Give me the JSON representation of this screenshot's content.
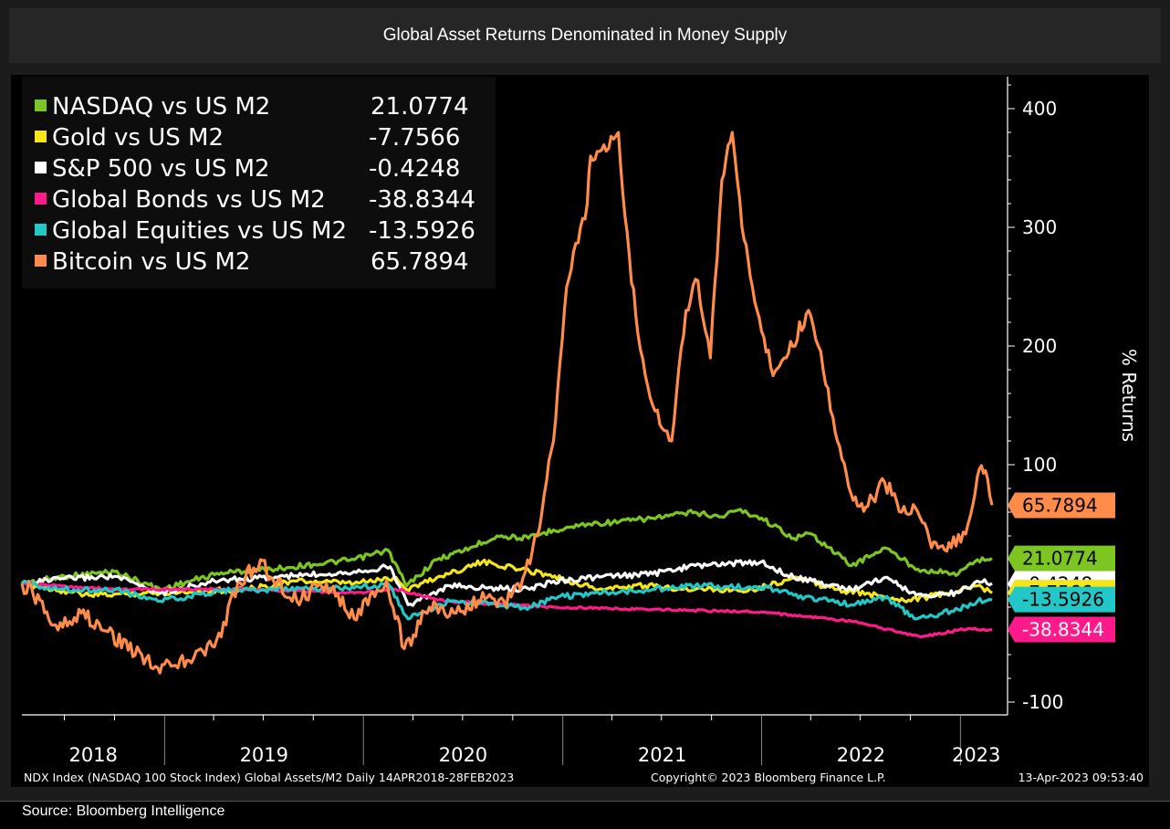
{
  "header": {
    "title": "Global Asset Returns Denominated in Money Supply"
  },
  "footer": {
    "index_info": "NDX Index (NASDAQ 100 Stock Index) Global Assets/M2  Daily 14APR2018-28FEB2023",
    "copyright": "Copyright© 2023 Bloomberg Finance L.P.",
    "timestamp": "13-Apr-2023 09:53:40",
    "source": "Source: Bloomberg Intelligence"
  },
  "chart_data": {
    "type": "line",
    "ylabel": "% Returns",
    "ylim": [
      -100,
      420
    ],
    "yticks": [
      -100,
      100,
      200,
      300,
      400
    ],
    "yticks_labels": [
      "-100",
      "100",
      "200",
      "300",
      "400"
    ],
    "x_range": [
      "2018-04-14",
      "2023-02-28"
    ],
    "x_year_labels": [
      "2018",
      "2019",
      "2020",
      "2021",
      "2022",
      "2023"
    ],
    "legend_position": "top-left",
    "grid": false,
    "series": [
      {
        "name": "NASDAQ vs US M2",
        "last_label": "21.0774",
        "color": "#7dc622",
        "points": [
          [
            "2018-04-14",
            0
          ],
          [
            "2018-07-01",
            6
          ],
          [
            "2018-10-01",
            10
          ],
          [
            "2018-12-24",
            -5
          ],
          [
            "2019-04-15",
            9
          ],
          [
            "2019-07-15",
            12
          ],
          [
            "2019-10-01",
            16
          ],
          [
            "2019-12-15",
            20
          ],
          [
            "2020-02-15",
            28
          ],
          [
            "2020-03-20",
            -2
          ],
          [
            "2020-05-15",
            20
          ],
          [
            "2020-07-15",
            30
          ],
          [
            "2020-09-02",
            40
          ],
          [
            "2020-10-30",
            38
          ],
          [
            "2020-12-15",
            45
          ],
          [
            "2021-02-15",
            50
          ],
          [
            "2021-04-15",
            52
          ],
          [
            "2021-06-15",
            55
          ],
          [
            "2021-09-01",
            60
          ],
          [
            "2021-10-15",
            56
          ],
          [
            "2021-11-19",
            62
          ],
          [
            "2022-01-01",
            55
          ],
          [
            "2022-03-01",
            38
          ],
          [
            "2022-04-01",
            42
          ],
          [
            "2022-06-15",
            15
          ],
          [
            "2022-08-15",
            30
          ],
          [
            "2022-10-15",
            12
          ],
          [
            "2022-12-28",
            8
          ],
          [
            "2023-02-01",
            20
          ],
          [
            "2023-02-28",
            21
          ]
        ]
      },
      {
        "name": "Gold vs US M2",
        "last_label": "-7.7566",
        "color": "#f5e619",
        "points": [
          [
            "2018-04-14",
            0
          ],
          [
            "2018-08-15",
            -10
          ],
          [
            "2018-12-15",
            -8
          ],
          [
            "2019-06-01",
            -5
          ],
          [
            "2019-09-01",
            2
          ],
          [
            "2019-12-15",
            0
          ],
          [
            "2020-03-01",
            5
          ],
          [
            "2020-03-20",
            -5
          ],
          [
            "2020-05-15",
            5
          ],
          [
            "2020-08-06",
            18
          ],
          [
            "2020-11-30",
            8
          ],
          [
            "2021-03-08",
            -5
          ],
          [
            "2021-06-01",
            -2
          ],
          [
            "2021-09-01",
            -5
          ],
          [
            "2021-12-15",
            -5
          ],
          [
            "2022-03-08",
            5
          ],
          [
            "2022-05-15",
            -5
          ],
          [
            "2022-09-28",
            -14
          ],
          [
            "2022-12-15",
            -8
          ],
          [
            "2023-02-01",
            -2
          ],
          [
            "2023-02-28",
            -8
          ]
        ]
      },
      {
        "name": "S&P 500 vs US M2",
        "last_label": "-0.4248",
        "color": "#ffffff",
        "points": [
          [
            "2018-04-14",
            0
          ],
          [
            "2018-07-01",
            4
          ],
          [
            "2018-10-01",
            6
          ],
          [
            "2018-12-24",
            -8
          ],
          [
            "2019-04-15",
            3
          ],
          [
            "2019-07-15",
            5
          ],
          [
            "2019-12-15",
            10
          ],
          [
            "2020-02-19",
            14
          ],
          [
            "2020-03-23",
            -18
          ],
          [
            "2020-06-08",
            -2
          ],
          [
            "2020-08-15",
            -4
          ],
          [
            "2020-11-01",
            -5
          ],
          [
            "2020-12-15",
            2
          ],
          [
            "2021-03-01",
            5
          ],
          [
            "2021-06-15",
            8
          ],
          [
            "2021-09-01",
            15
          ],
          [
            "2021-12-31",
            18
          ],
          [
            "2022-03-01",
            5
          ],
          [
            "2022-06-15",
            -5
          ],
          [
            "2022-08-15",
            5
          ],
          [
            "2022-10-12",
            -10
          ],
          [
            "2022-12-28",
            -8
          ],
          [
            "2023-02-01",
            2
          ],
          [
            "2023-02-28",
            0
          ]
        ]
      },
      {
        "name": "Global Bonds vs US M2",
        "last_label": "-38.8344",
        "color": "#ff1a8c",
        "points": [
          [
            "2018-04-14",
            0
          ],
          [
            "2018-10-01",
            -5
          ],
          [
            "2019-06-01",
            -5
          ],
          [
            "2019-12-15",
            -8
          ],
          [
            "2020-03-01",
            -5
          ],
          [
            "2020-06-01",
            -15
          ],
          [
            "2020-12-15",
            -20
          ],
          [
            "2021-06-15",
            -22
          ],
          [
            "2021-12-31",
            -24
          ],
          [
            "2022-06-15",
            -32
          ],
          [
            "2022-10-21",
            -45
          ],
          [
            "2023-01-15",
            -38
          ],
          [
            "2023-02-28",
            -39
          ]
        ]
      },
      {
        "name": "Global Equities vs US M2",
        "last_label": "-13.5926",
        "color": "#22c8c8",
        "points": [
          [
            "2018-04-14",
            0
          ],
          [
            "2018-07-01",
            -5
          ],
          [
            "2018-10-01",
            -5
          ],
          [
            "2018-12-24",
            -15
          ],
          [
            "2019-04-15",
            -6
          ],
          [
            "2019-12-15",
            -4
          ],
          [
            "2020-02-15",
            0
          ],
          [
            "2020-03-23",
            -30
          ],
          [
            "2020-06-08",
            -15
          ],
          [
            "2020-11-01",
            -20
          ],
          [
            "2020-12-15",
            -12
          ],
          [
            "2021-03-01",
            -8
          ],
          [
            "2021-06-15",
            -5
          ],
          [
            "2021-09-01",
            -2
          ],
          [
            "2021-12-31",
            -3
          ],
          [
            "2022-03-01",
            -10
          ],
          [
            "2022-06-15",
            -18
          ],
          [
            "2022-08-15",
            -12
          ],
          [
            "2022-10-12",
            -30
          ],
          [
            "2022-12-28",
            -22
          ],
          [
            "2023-02-01",
            -15
          ],
          [
            "2023-02-28",
            -14
          ]
        ]
      },
      {
        "name": "Bitcoin vs US M2",
        "last_label": "65.7894",
        "color": "#ff8c4a",
        "points": [
          [
            "2018-04-14",
            0
          ],
          [
            "2018-05-05",
            -10
          ],
          [
            "2018-06-15",
            -35
          ],
          [
            "2018-08-01",
            -25
          ],
          [
            "2018-09-15",
            -40
          ],
          [
            "2018-11-20",
            -60
          ],
          [
            "2018-12-15",
            -70
          ],
          [
            "2019-02-15",
            -65
          ],
          [
            "2019-04-15",
            -45
          ],
          [
            "2019-05-15",
            0
          ],
          [
            "2019-06-26",
            20
          ],
          [
            "2019-07-15",
            5
          ],
          [
            "2019-09-01",
            -15
          ],
          [
            "2019-10-25",
            0
          ],
          [
            "2019-12-15",
            -30
          ],
          [
            "2020-02-12",
            2
          ],
          [
            "2020-03-16",
            -55
          ],
          [
            "2020-05-01",
            -20
          ],
          [
            "2020-06-15",
            -25
          ],
          [
            "2020-08-15",
            -12
          ],
          [
            "2020-09-15",
            -15
          ],
          [
            "2020-10-15",
            -5
          ],
          [
            "2020-11-15",
            40
          ],
          [
            "2020-12-15",
            120
          ],
          [
            "2021-01-08",
            250
          ],
          [
            "2021-02-15",
            320
          ],
          [
            "2021-02-21",
            360
          ],
          [
            "2021-03-13",
            365
          ],
          [
            "2021-04-13",
            380
          ],
          [
            "2021-04-25",
            310
          ],
          [
            "2021-05-19",
            210
          ],
          [
            "2021-06-15",
            150
          ],
          [
            "2021-07-20",
            120
          ],
          [
            "2021-08-15",
            230
          ],
          [
            "2021-09-06",
            255
          ],
          [
            "2021-09-29",
            190
          ],
          [
            "2021-10-20",
            340
          ],
          [
            "2021-11-08",
            380
          ],
          [
            "2021-11-26",
            300
          ],
          [
            "2021-12-15",
            250
          ],
          [
            "2022-01-22",
            175
          ],
          [
            "2022-02-15",
            190
          ],
          [
            "2022-03-28",
            230
          ],
          [
            "2022-04-15",
            200
          ],
          [
            "2022-05-12",
            140
          ],
          [
            "2022-06-18",
            70
          ],
          [
            "2022-06-30",
            65
          ],
          [
            "2022-07-15",
            65
          ],
          [
            "2022-08-15",
            85
          ],
          [
            "2022-09-15",
            60
          ],
          [
            "2022-10-15",
            60
          ],
          [
            "2022-11-09",
            30
          ],
          [
            "2022-12-15",
            30
          ],
          [
            "2023-01-15",
            50
          ],
          [
            "2023-02-01",
            90
          ],
          [
            "2023-02-16",
            95
          ],
          [
            "2023-02-28",
            66
          ]
        ]
      }
    ],
    "badges": [
      {
        "label": "65.7894",
        "value": 65.7894,
        "color": "#ff8c4a",
        "text_color": "#000000"
      },
      {
        "label": "21.0774",
        "value": 21.0774,
        "color": "#7dc622",
        "text_color": "#000000"
      },
      {
        "label": "-0.4248",
        "value": -0.4248,
        "color": "#ffffff",
        "text_color": "#000000"
      },
      {
        "label": "-7.7566",
        "value": -7.7566,
        "color": "#f5e619",
        "text_color": "#000000"
      },
      {
        "label": "-13.5926",
        "value": -13.5926,
        "color": "#22c8c8",
        "text_color": "#000000"
      },
      {
        "label": "-38.8344",
        "value": -38.8344,
        "color": "#ff1a8c",
        "text_color": "#ffffff"
      }
    ]
  }
}
